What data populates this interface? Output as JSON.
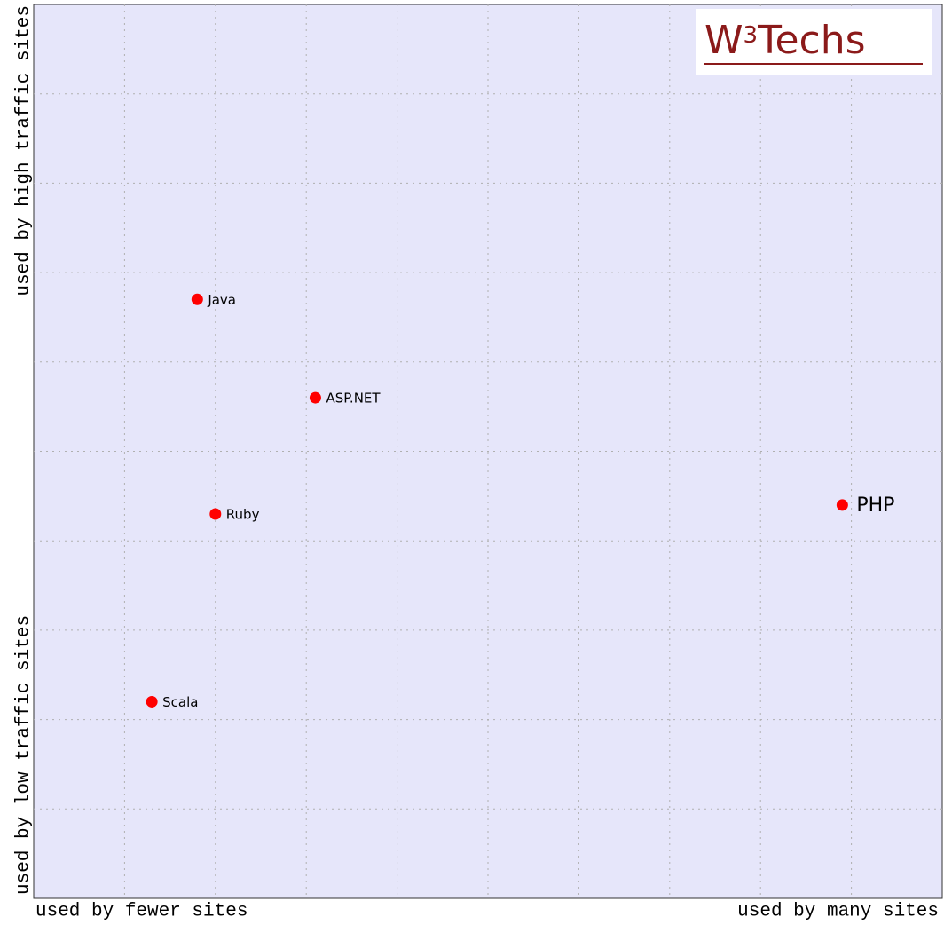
{
  "chart_data": {
    "type": "scatter",
    "x_label_low": "used by fewer sites",
    "x_label_high": "used by many sites",
    "y_label_low": "used by low traffic sites",
    "y_label_high": "used by high traffic sites",
    "logo": [
      "W",
      "3",
      "Techs"
    ],
    "names": [
      "Java",
      "ASP.NET",
      "Ruby",
      "PHP",
      "Scala"
    ],
    "x": [
      1.8,
      3.1,
      2.0,
      8.9,
      1.3
    ],
    "values": [
      6.7,
      5.6,
      4.3,
      4.4,
      2.2
    ],
    "color": "#ff0000",
    "xlim": [
      0,
      10
    ],
    "ylim": [
      0,
      10
    ],
    "xticks": [
      1,
      2,
      3,
      4,
      5,
      6,
      7,
      8,
      9
    ],
    "yticks": [
      1,
      2,
      3,
      4,
      5,
      6,
      7,
      8,
      9
    ],
    "grid": true
  }
}
